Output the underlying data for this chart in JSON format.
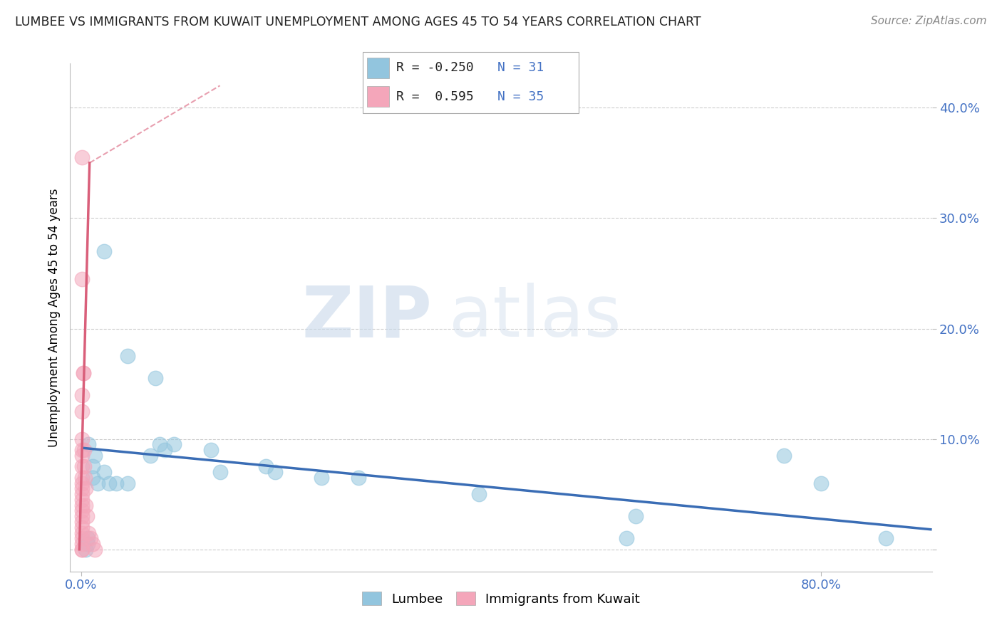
{
  "title": "LUMBEE VS IMMIGRANTS FROM KUWAIT UNEMPLOYMENT AMONG AGES 45 TO 54 YEARS CORRELATION CHART",
  "source": "Source: ZipAtlas.com",
  "ylabel": "Unemployment Among Ages 45 to 54 years",
  "legend_lumbee": {
    "R": "-0.250",
    "N": "31"
  },
  "legend_kuwait": {
    "R": "0.595",
    "N": "35"
  },
  "lumbee_color": "#92C5DE",
  "kuwait_color": "#F4A6BA",
  "lumbee_trend_color": "#3A6DB5",
  "kuwait_trend_color": "#D95F7A",
  "watermark_zip": "ZIP",
  "watermark_atlas": "atlas",
  "lumbee_points": [
    [
      0.008,
      0.095
    ],
    [
      0.025,
      0.27
    ],
    [
      0.05,
      0.175
    ],
    [
      0.08,
      0.155
    ],
    [
      0.075,
      0.085
    ],
    [
      0.085,
      0.095
    ],
    [
      0.09,
      0.09
    ],
    [
      0.1,
      0.095
    ],
    [
      0.015,
      0.085
    ],
    [
      0.012,
      0.075
    ],
    [
      0.012,
      0.065
    ],
    [
      0.018,
      0.06
    ],
    [
      0.025,
      0.07
    ],
    [
      0.03,
      0.06
    ],
    [
      0.038,
      0.06
    ],
    [
      0.05,
      0.06
    ],
    [
      0.14,
      0.09
    ],
    [
      0.15,
      0.07
    ],
    [
      0.2,
      0.075
    ],
    [
      0.21,
      0.07
    ],
    [
      0.26,
      0.065
    ],
    [
      0.3,
      0.065
    ],
    [
      0.43,
      0.05
    ],
    [
      0.59,
      0.01
    ],
    [
      0.6,
      0.03
    ],
    [
      0.76,
      0.085
    ],
    [
      0.8,
      0.06
    ],
    [
      0.87,
      0.01
    ],
    [
      0.007,
      0.01
    ],
    [
      0.007,
      0.005
    ],
    [
      0.005,
      0.0
    ]
  ],
  "kuwait_points": [
    [
      0.001,
      0.355
    ],
    [
      0.001,
      0.245
    ],
    [
      0.002,
      0.16
    ],
    [
      0.001,
      0.14
    ],
    [
      0.001,
      0.125
    ],
    [
      0.001,
      0.1
    ],
    [
      0.001,
      0.09
    ],
    [
      0.001,
      0.085
    ],
    [
      0.001,
      0.075
    ],
    [
      0.001,
      0.065
    ],
    [
      0.001,
      0.06
    ],
    [
      0.001,
      0.055
    ],
    [
      0.001,
      0.05
    ],
    [
      0.001,
      0.045
    ],
    [
      0.001,
      0.04
    ],
    [
      0.001,
      0.035
    ],
    [
      0.001,
      0.03
    ],
    [
      0.001,
      0.025
    ],
    [
      0.001,
      0.02
    ],
    [
      0.001,
      0.015
    ],
    [
      0.001,
      0.01
    ],
    [
      0.001,
      0.005
    ],
    [
      0.001,
      0.0
    ],
    [
      0.001,
      0.0
    ],
    [
      0.002,
      0.16
    ],
    [
      0.003,
      0.09
    ],
    [
      0.003,
      0.075
    ],
    [
      0.004,
      0.065
    ],
    [
      0.005,
      0.055
    ],
    [
      0.005,
      0.04
    ],
    [
      0.006,
      0.03
    ],
    [
      0.008,
      0.015
    ],
    [
      0.01,
      0.01
    ],
    [
      0.012,
      0.005
    ],
    [
      0.015,
      0.0
    ]
  ],
  "xlim": [
    -0.012,
    0.92
  ],
  "ylim": [
    -0.02,
    0.44
  ],
  "ytick_vals": [
    0.0,
    0.1,
    0.2,
    0.3,
    0.4
  ],
  "ytick_labels": [
    "",
    "10.0%",
    "20.0%",
    "30.0%",
    "40.0%"
  ],
  "xtick_vals": [
    0.0,
    0.8
  ],
  "xtick_labels": [
    "0.0%",
    "80.0%"
  ]
}
